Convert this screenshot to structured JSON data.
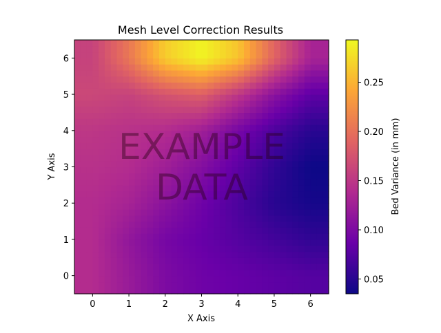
{
  "chart_data": {
    "type": "heatmap",
    "title": "Mesh Level Correction Results",
    "xlabel": "X Axis",
    "ylabel": "Y Axis",
    "xlim": [
      -0.5,
      6.5
    ],
    "ylim": [
      -0.5,
      6.5
    ],
    "x_ticks": [
      "0",
      "1",
      "2",
      "3",
      "4",
      "5",
      "6"
    ],
    "y_ticks": [
      "0",
      "1",
      "2",
      "3",
      "4",
      "5",
      "6"
    ],
    "colorbar": {
      "label": "Bed Variance (in mm)",
      "range": [
        0.035,
        0.293
      ],
      "ticks": [
        "0.05",
        "0.10",
        "0.15",
        "0.20",
        "0.25"
      ],
      "colormap": "plasma",
      "colors": [
        "#0d0887",
        "#6a00a8",
        "#b12a90",
        "#e16462",
        "#fca636",
        "#f0f921"
      ]
    },
    "watermark": [
      "EXAMPLE",
      "DATA"
    ],
    "grid": false,
    "grid_x": [
      0,
      1,
      2,
      3,
      4,
      5,
      6
    ],
    "grid_y": [
      0,
      1,
      2,
      3,
      4,
      5,
      6
    ],
    "z": [
      [
        0.14,
        0.12,
        0.1,
        0.09,
        0.085,
        0.08,
        0.075
      ],
      [
        0.14,
        0.115,
        0.095,
        0.085,
        0.075,
        0.065,
        0.055
      ],
      [
        0.14,
        0.13,
        0.11,
        0.09,
        0.07,
        0.05,
        0.04
      ],
      [
        0.145,
        0.14,
        0.125,
        0.105,
        0.08,
        0.055,
        0.035
      ],
      [
        0.15,
        0.145,
        0.14,
        0.125,
        0.095,
        0.07,
        0.05
      ],
      [
        0.165,
        0.16,
        0.175,
        0.185,
        0.15,
        0.11,
        0.08
      ],
      [
        0.16,
        0.205,
        0.265,
        0.29,
        0.26,
        0.19,
        0.13
      ]
    ]
  }
}
